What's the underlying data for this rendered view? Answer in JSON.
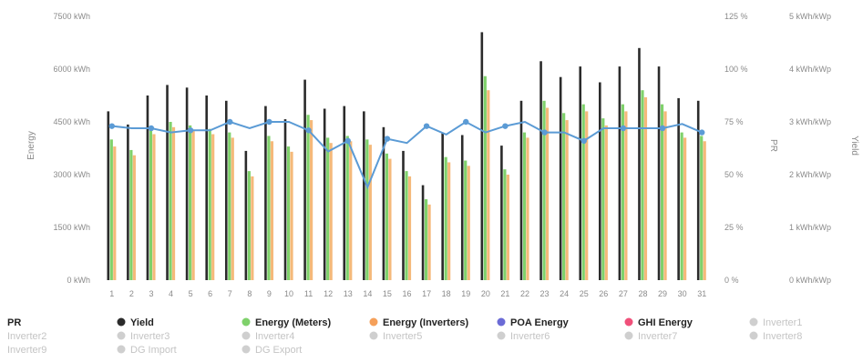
{
  "chart_data": {
    "type": "bar",
    "categories": [
      "1",
      "2",
      "3",
      "4",
      "5",
      "6",
      "7",
      "8",
      "9",
      "10",
      "11",
      "12",
      "13",
      "14",
      "15",
      "16",
      "17",
      "18",
      "19",
      "20",
      "21",
      "22",
      "23",
      "24",
      "25",
      "26",
      "27",
      "28",
      "29",
      "30",
      "31"
    ],
    "series": [
      {
        "name": "Yield",
        "axis": "kWh/kWp",
        "color": "#2b2b2b",
        "values": [
          3.2,
          2.95,
          3.5,
          3.7,
          3.65,
          3.5,
          3.4,
          2.45,
          3.3,
          3.05,
          3.8,
          3.25,
          3.3,
          3.2,
          2.9,
          2.45,
          1.8,
          2.8,
          2.75,
          4.7,
          2.55,
          3.4,
          4.15,
          3.85,
          4.05,
          3.75,
          4.05,
          4.4,
          4.05,
          3.45,
          3.4
        ]
      },
      {
        "name": "Energy (Meters)",
        "axis": "kWh",
        "color": "#7fd16b",
        "values": [
          4000,
          3700,
          4300,
          4500,
          4400,
          4300,
          4200,
          3100,
          4100,
          3800,
          4700,
          4050,
          4100,
          4000,
          3600,
          3100,
          2300,
          3500,
          3400,
          5800,
          3150,
          4200,
          5100,
          4750,
          5000,
          4600,
          5000,
          5400,
          5000,
          4200,
          4100
        ]
      },
      {
        "name": "Energy (Inverters)",
        "axis": "kWh",
        "color": "#f5b97a",
        "values": [
          3800,
          3550,
          4150,
          4350,
          4250,
          4150,
          4050,
          2950,
          3950,
          3650,
          4550,
          3900,
          3950,
          3850,
          3450,
          2950,
          2150,
          3350,
          3250,
          5400,
          3000,
          4050,
          4900,
          4550,
          4800,
          4400,
          4800,
          5200,
          4800,
          4050,
          3950
        ]
      },
      {
        "name": "PR",
        "type": "line",
        "axis": "%",
        "color": "#5b9bd5",
        "values": [
          73,
          72,
          72,
          70,
          71,
          71,
          75,
          72,
          75,
          75,
          71,
          61,
          66,
          44,
          67,
          65,
          73,
          69,
          75,
          70,
          73,
          75,
          70,
          70,
          66,
          72,
          72,
          72,
          72,
          74,
          70
        ]
      }
    ],
    "axes": {
      "y_left": {
        "label": "Energy",
        "min": 0,
        "max": 7500,
        "ticks": [
          "0 kWh",
          "1500 kWh",
          "3000 kWh",
          "4500 kWh",
          "6000 kWh",
          "7500 kWh"
        ]
      },
      "y_pr": {
        "label": "PR",
        "min": 0,
        "max": 125,
        "ticks": [
          "0 %",
          "25 %",
          "50 %",
          "75 %",
          "100 %",
          "125 %"
        ]
      },
      "y_yield": {
        "label": "Yield",
        "min": 0,
        "max": 5,
        "ticks": [
          "0 kWh/kWp",
          "1 kWh/kWp",
          "2 kWh/kWp",
          "3 kWh/kWp",
          "4 kWh/kWp",
          "5 kWh/kWp"
        ]
      }
    },
    "grid": false,
    "legend": {
      "placement": "bottom",
      "items": [
        {
          "label": "PR",
          "color": "#5b9bd5",
          "marker": "none",
          "active": true
        },
        {
          "label": "Yield",
          "color": "#2b2b2b",
          "marker": "dot",
          "active": true
        },
        {
          "label": "Energy (Meters)",
          "color": "#7fd16b",
          "marker": "dot",
          "active": true
        },
        {
          "label": "Energy (Inverters)",
          "color": "#f5a05a",
          "marker": "dot",
          "active": true
        },
        {
          "label": "POA Energy",
          "color": "#6b6bd6",
          "marker": "dot",
          "active": true
        },
        {
          "label": "GHI Energy",
          "color": "#f0507a",
          "marker": "dot",
          "active": true
        },
        {
          "label": "Inverter1",
          "color": "#cfcfcf",
          "marker": "dot",
          "active": false
        },
        {
          "label": "Inverter2",
          "color": "#cfcfcf",
          "marker": "none",
          "active": false
        },
        {
          "label": "Inverter3",
          "color": "#cfcfcf",
          "marker": "dot",
          "active": false
        },
        {
          "label": "Inverter4",
          "color": "#cfcfcf",
          "marker": "dot",
          "active": false
        },
        {
          "label": "Inverter5",
          "color": "#cfcfcf",
          "marker": "dot",
          "active": false
        },
        {
          "label": "Inverter6",
          "color": "#cfcfcf",
          "marker": "dot",
          "active": false
        },
        {
          "label": "Inverter7",
          "color": "#cfcfcf",
          "marker": "dot",
          "active": false
        },
        {
          "label": "Inverter8",
          "color": "#cfcfcf",
          "marker": "dot",
          "active": false
        },
        {
          "label": "Inverter9",
          "color": "#cfcfcf",
          "marker": "none",
          "active": false
        },
        {
          "label": "DG Import",
          "color": "#cfcfcf",
          "marker": "dot",
          "active": false
        },
        {
          "label": "DG Export",
          "color": "#cfcfcf",
          "marker": "dot",
          "active": false
        }
      ]
    }
  }
}
